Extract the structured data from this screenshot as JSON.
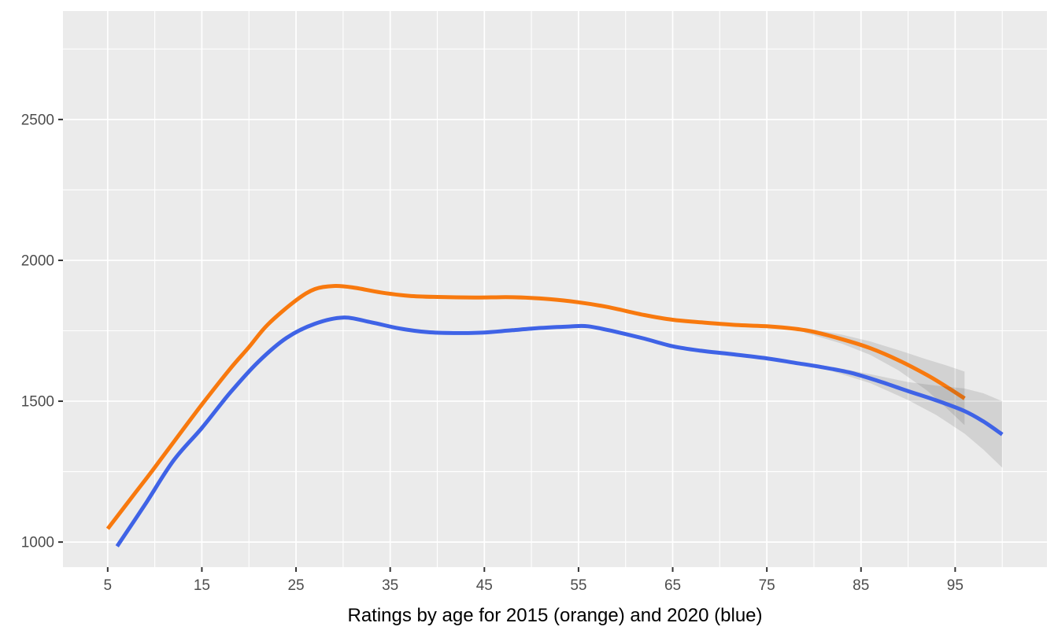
{
  "figure": {
    "background": "#FFFFFF",
    "panel_background": "#EBEBEB",
    "grid_color": "#FFFFFF",
    "tick_mark_color": "#333333",
    "tick_label_color": "#4D4D4D",
    "title_color": "#000000",
    "ci_ribbon_color_name": "gray-confidence-ribbon"
  },
  "chart_data": {
    "type": "line",
    "title": "",
    "xlabel": "Ratings by age for 2015 (orange) and 2020 (blue)",
    "ylabel": "",
    "grid": true,
    "legend": "none",
    "xlim": [
      0.25,
      104.75
    ],
    "ylim": [
      911,
      2885
    ],
    "x_major_ticks": [
      5,
      15,
      25,
      35,
      45,
      55,
      65,
      75,
      85,
      95
    ],
    "x_minor_ticks": [
      10,
      20,
      30,
      40,
      50,
      60,
      70,
      80,
      90,
      100
    ],
    "y_major_ticks": [
      1000,
      1500,
      2000,
      2500
    ],
    "y_minor_ticks": [
      1250,
      1750,
      2250,
      2750
    ],
    "ci_fill": "rgba(55,55,55,0.135)",
    "series": [
      {
        "name": "2015",
        "color": "#F8790E",
        "x": [
          5,
          8,
          10,
          12,
          15,
          18,
          20,
          22,
          25,
          27,
          29,
          31,
          34,
          37,
          40,
          44,
          48,
          52,
          55,
          58,
          62,
          65,
          68,
          72,
          75,
          78,
          80,
          83,
          86,
          89,
          92,
          94,
          96
        ],
        "y": [
          1047,
          1178,
          1265,
          1355,
          1488,
          1615,
          1692,
          1772,
          1858,
          1898,
          1909,
          1904,
          1886,
          1874,
          1870,
          1868,
          1869,
          1862,
          1851,
          1835,
          1806,
          1789,
          1780,
          1770,
          1766,
          1757,
          1746,
          1720,
          1688,
          1645,
          1593,
          1553,
          1510
        ],
        "ci": {
          "x": [
            79,
            83,
            86,
            89,
            92,
            94,
            96
          ],
          "lo": [
            1744,
            1704,
            1664,
            1609,
            1538,
            1478,
            1415
          ],
          "hi": [
            1760,
            1736,
            1712,
            1681,
            1648,
            1628,
            1605
          ]
        }
      },
      {
        "name": "2020",
        "color": "#3F63E6",
        "x": [
          6,
          9,
          12,
          15,
          18,
          21,
          24,
          27,
          30,
          33,
          36,
          39,
          42,
          45,
          48,
          51,
          54,
          56,
          59,
          62,
          65,
          68,
          71,
          75,
          78,
          81,
          84,
          87,
          90,
          93,
          96,
          98,
          100
        ],
        "y": [
          985,
          1135,
          1290,
          1405,
          1530,
          1640,
          1725,
          1775,
          1797,
          1780,
          1758,
          1745,
          1742,
          1744,
          1752,
          1760,
          1765,
          1766,
          1746,
          1722,
          1695,
          1679,
          1668,
          1652,
          1636,
          1620,
          1600,
          1570,
          1536,
          1503,
          1465,
          1428,
          1382
        ],
        "ci": {
          "x": [
            82,
            86,
            90,
            93,
            96,
            98,
            100
          ],
          "lo": [
            1606,
            1564,
            1504,
            1451,
            1385,
            1328,
            1264
          ],
          "hi": [
            1622,
            1596,
            1568,
            1555,
            1545,
            1528,
            1500
          ]
        }
      }
    ]
  }
}
